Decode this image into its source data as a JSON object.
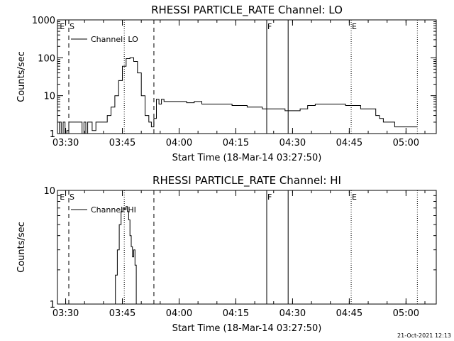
{
  "footer": {
    "timestamp": "21-Oct-2021 12:13"
  },
  "chart_data": [
    {
      "type": "line",
      "title": "RHESSI PARTICLE_RATE Channel: LO",
      "xlabel": "Start Time (18-Mar-14 03:27:50)",
      "ylabel": "Counts/sec",
      "yscale": "log",
      "ylim": [
        1,
        1000
      ],
      "xlim": [
        "03:27:50",
        "05:08:00"
      ],
      "x_ticks": [
        "03:30",
        "03:45",
        "04:00",
        "04:15",
        "04:30",
        "04:45",
        "05:00"
      ],
      "y_ticks": [
        "1",
        "10",
        "100",
        "1000"
      ],
      "legend": "Channel: LO",
      "series": [
        {
          "name": "Channel: LO",
          "x": [
            "03:27:50",
            "03:28:20",
            "03:28:50",
            "03:29:20",
            "03:29:50",
            "03:30:20",
            "03:30:50",
            "03:31:20",
            "03:31:50",
            "03:32:20",
            "03:32:50",
            "03:33:20",
            "03:33:50",
            "03:34:20",
            "03:34:50",
            "03:35:20",
            "03:35:50",
            "03:36:20",
            "03:37:00",
            "03:38:00",
            "03:39:00",
            "03:40:00",
            "03:41:00",
            "03:42:00",
            "03:43:00",
            "03:44:00",
            "03:45:00",
            "03:46:00",
            "03:47:00",
            "03:48:00",
            "03:49:00",
            "03:50:00",
            "03:51:00",
            "03:52:00",
            "03:52:40",
            "03:53:20",
            "03:54:00",
            "03:54:40",
            "03:55:20",
            "03:56:00",
            "03:58:00",
            "04:00:00",
            "04:02:00",
            "04:04:00",
            "04:06:00",
            "04:08:00",
            "04:10:00",
            "04:12:00",
            "04:14:00",
            "04:16:00",
            "04:18:00",
            "04:20:00",
            "04:22:00",
            "04:24:00",
            "04:26:00",
            "04:28:00",
            "04:30:00",
            "04:32:00",
            "04:34:00",
            "04:36:00",
            "04:38:00",
            "04:40:00",
            "04:42:00",
            "04:44:00",
            "04:46:00",
            "04:48:00",
            "04:50:00",
            "04:52:00",
            "04:53:00",
            "04:54:00",
            "04:55:00",
            "04:56:00",
            "04:57:00",
            "04:58:00",
            "04:59:00",
            "05:00:00",
            "05:01:00",
            "05:02:00",
            "05:03:00"
          ],
          "y": [
            1,
            2,
            1,
            2,
            1,
            1.2,
            2,
            2,
            2,
            2,
            2,
            2,
            2,
            1,
            2,
            1,
            2,
            2,
            1.2,
            2,
            2,
            2,
            3,
            5,
            10,
            25,
            60,
            95,
            100,
            80,
            40,
            10,
            3,
            2,
            1.5,
            2.5,
            8,
            6,
            8,
            7,
            7,
            7,
            6.5,
            7,
            6,
            6,
            6,
            6,
            5.5,
            5.5,
            5,
            5,
            4.5,
            4.5,
            4.5,
            4,
            4,
            4.5,
            5.5,
            6,
            6,
            6,
            6,
            5.5,
            5.5,
            4.5,
            4.5,
            3,
            2.5,
            2,
            2,
            2,
            1.5,
            1.5,
            1.5,
            1.5,
            1.5,
            1.5,
            1.5
          ]
        }
      ],
      "markers": [
        {
          "label": "E",
          "time": "03:28:15",
          "style": "label"
        },
        {
          "label": "S",
          "time": "03:30:50",
          "style": "dashed"
        },
        {
          "label": "",
          "time": "03:53:20",
          "style": "dashed"
        },
        {
          "label": "",
          "time": "03:45:30",
          "style": "dotted"
        },
        {
          "label": "F",
          "time": "04:23:10",
          "style": "solid"
        },
        {
          "label": "",
          "time": "04:28:50",
          "style": "solid"
        },
        {
          "label": "E",
          "time": "04:45:30",
          "style": "dotted"
        },
        {
          "label": "",
          "time": "05:03:00",
          "style": "dotted"
        }
      ]
    },
    {
      "type": "line",
      "title": "RHESSI PARTICLE_RATE Channel: HI",
      "xlabel": "Start Time (18-Mar-14 03:27:50)",
      "ylabel": "Counts/sec",
      "yscale": "log",
      "ylim": [
        1,
        10
      ],
      "xlim": [
        "03:27:50",
        "05:08:00"
      ],
      "x_ticks": [
        "03:30",
        "03:45",
        "04:00",
        "04:15",
        "04:30",
        "04:45",
        "05:00"
      ],
      "y_ticks": [
        "1",
        "10"
      ],
      "legend": "Channel: HI",
      "series": [
        {
          "name": "Channel: HI",
          "x": [
            "03:42:40",
            "03:43:10",
            "03:43:40",
            "03:44:10",
            "03:44:40",
            "03:45:10",
            "03:45:40",
            "03:46:00",
            "03:46:20",
            "03:46:40",
            "03:47:00",
            "03:47:20",
            "03:47:40",
            "03:48:00",
            "03:48:20",
            "03:48:40"
          ],
          "y": [
            1,
            1.8,
            3,
            5,
            6.5,
            7,
            6.8,
            7.2,
            6.5,
            5.5,
            4,
            3.2,
            2.6,
            3,
            2.2,
            1
          ]
        }
      ],
      "markers": [
        {
          "label": "E",
          "time": "03:28:15",
          "style": "label"
        },
        {
          "label": "S",
          "time": "03:30:50",
          "style": "dashed"
        },
        {
          "label": "",
          "time": "03:53:20",
          "style": "dashed"
        },
        {
          "label": "",
          "time": "03:45:30",
          "style": "dotted"
        },
        {
          "label": "F",
          "time": "04:23:10",
          "style": "solid"
        },
        {
          "label": "",
          "time": "04:28:50",
          "style": "solid"
        },
        {
          "label": "E",
          "time": "04:45:30",
          "style": "dotted"
        },
        {
          "label": "",
          "time": "05:03:00",
          "style": "dotted"
        }
      ]
    }
  ]
}
